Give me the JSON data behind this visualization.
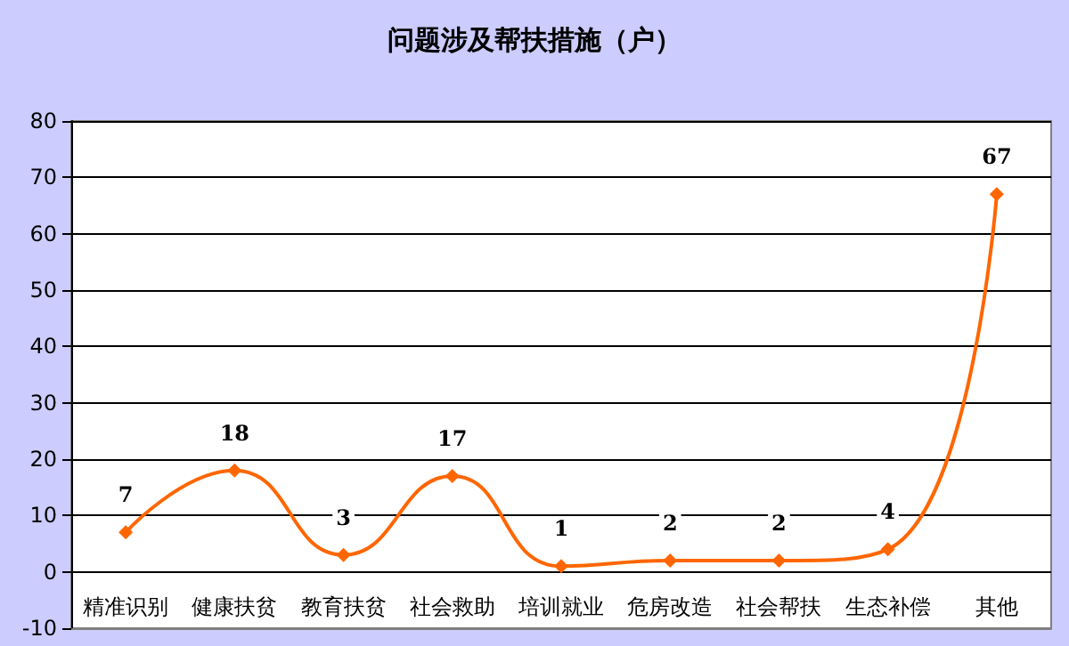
{
  "chart_data": {
    "type": "line",
    "title": "问题涉及帮扶措施（户）",
    "categories": [
      "精准识别",
      "健康扶贫",
      "教育扶贫",
      "社会救助",
      "培训就业",
      "危房改造",
      "社会帮扶",
      "生态补偿",
      "其他"
    ],
    "series": [
      {
        "color": "#ff6600",
        "values": [
          7,
          18,
          3,
          17,
          1,
          2,
          2,
          4,
          67
        ]
      }
    ],
    "ylim": [
      -10,
      80
    ],
    "yticks": [
      -10,
      0,
      10,
      20,
      30,
      40,
      50,
      60,
      70,
      80
    ],
    "grid": "y",
    "marker": "diamond",
    "line_style": "solid",
    "data_labels": true
  }
}
